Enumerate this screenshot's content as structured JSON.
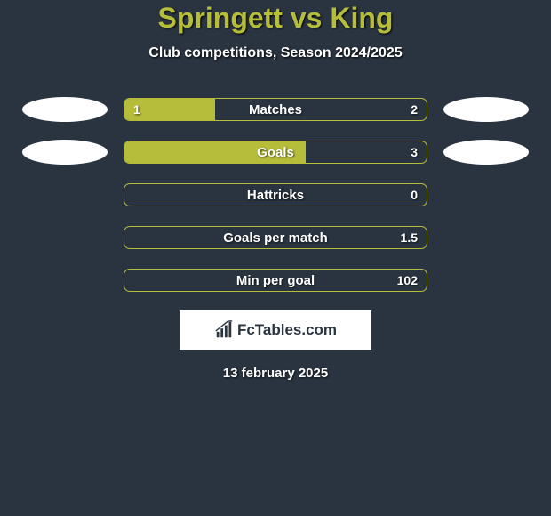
{
  "title": "Springett vs King",
  "subtitle": "Club competitions, Season 2024/2025",
  "colors": {
    "background": "#2a3440",
    "accent": "#b6bd3a",
    "text": "#ffffff",
    "ellipse": "#ffffff",
    "logo_bg": "#ffffff",
    "logo_text": "#2a3440"
  },
  "rows": [
    {
      "label": "Matches",
      "left": "1",
      "right": "2",
      "fill_pct": 30,
      "show_left_ellipse": true,
      "show_right_ellipse": true
    },
    {
      "label": "Goals",
      "left": "",
      "right": "3",
      "fill_pct": 60,
      "show_left_ellipse": true,
      "show_right_ellipse": true
    },
    {
      "label": "Hattricks",
      "left": "",
      "right": "0",
      "fill_pct": 0,
      "show_left_ellipse": false,
      "show_right_ellipse": false
    },
    {
      "label": "Goals per match",
      "left": "",
      "right": "1.5",
      "fill_pct": 0,
      "show_left_ellipse": false,
      "show_right_ellipse": false
    },
    {
      "label": "Min per goal",
      "left": "",
      "right": "102",
      "fill_pct": 0,
      "show_left_ellipse": false,
      "show_right_ellipse": false
    }
  ],
  "logo_text": "FcTables.com",
  "date": "13 february 2025"
}
